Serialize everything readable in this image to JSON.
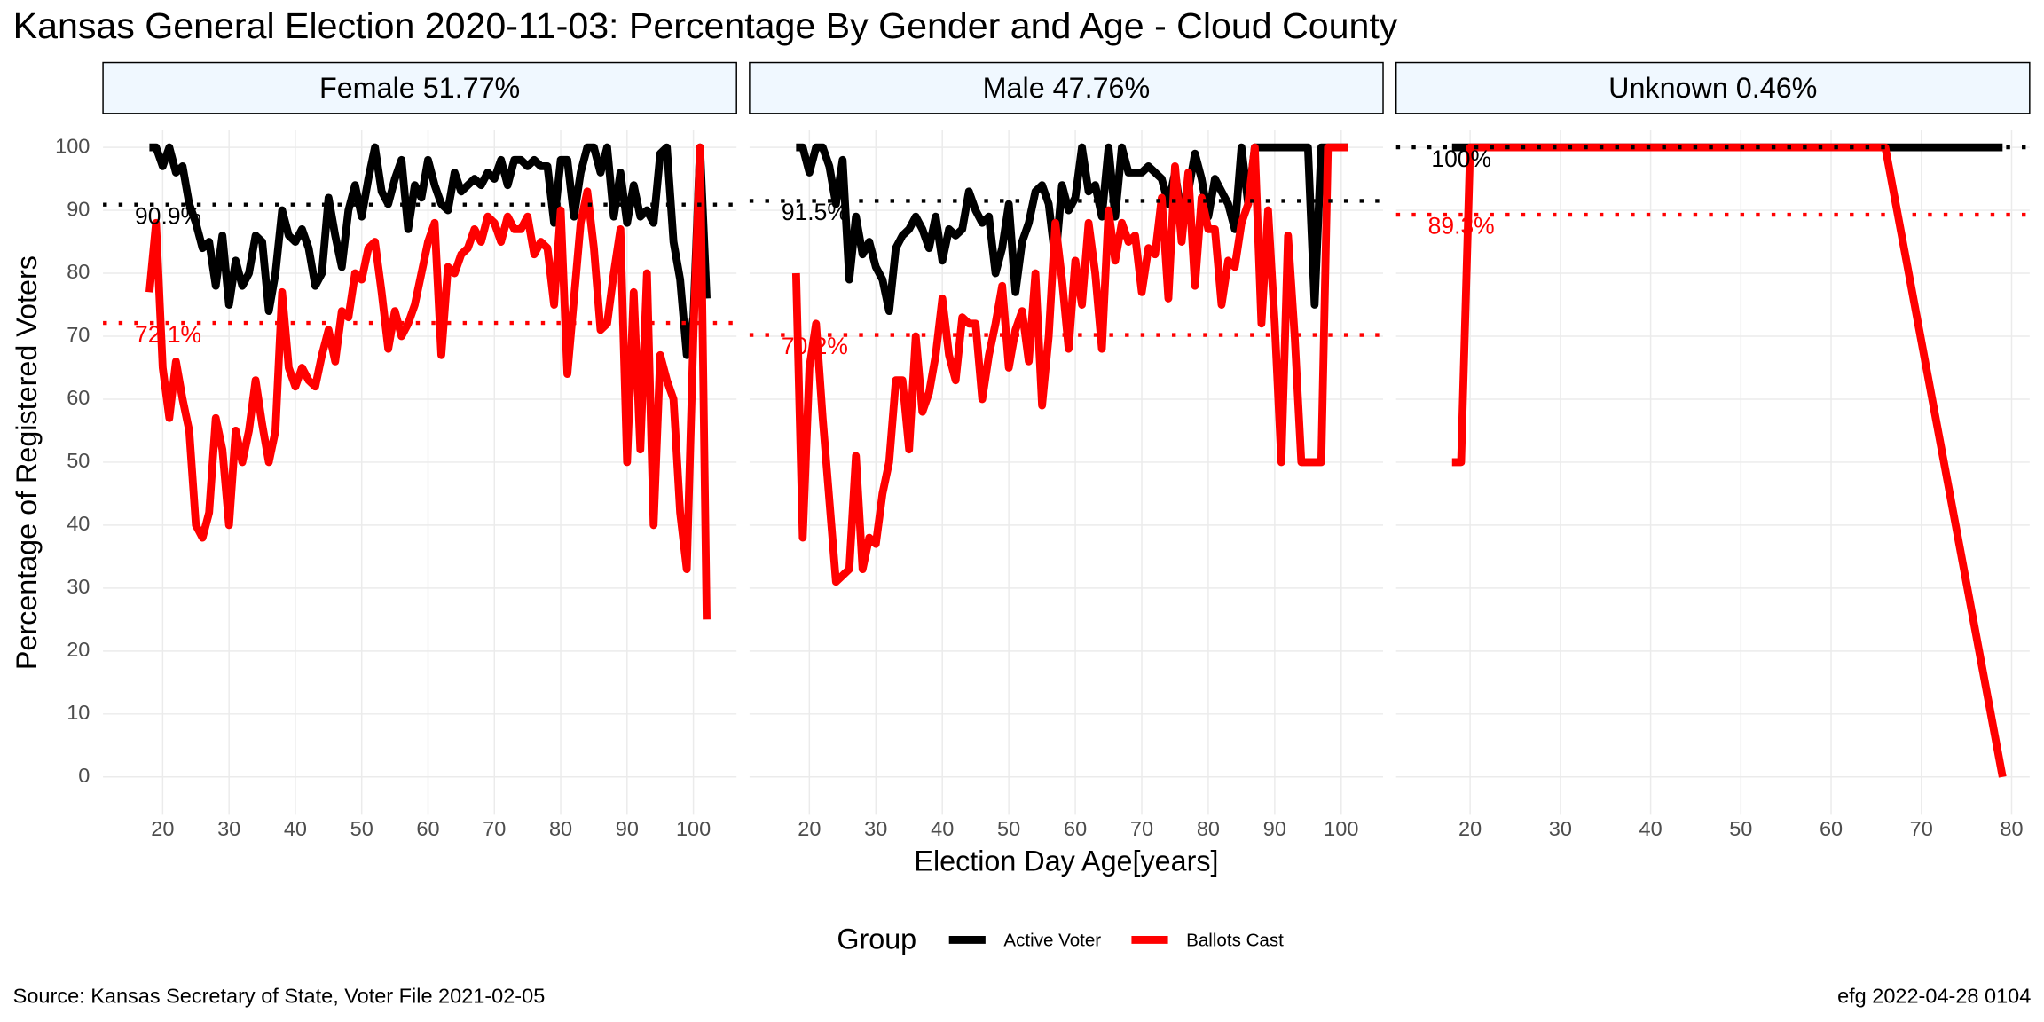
{
  "title": "Kansas General Election 2020-11-03:  Percentage By Gender and Age - Cloud County",
  "x_label": "Election Day Age[years]",
  "y_label": "Percentage of Registered Voters",
  "legend_title": "Group",
  "caption_left": "Source:  Kansas Secretary of State, Voter File  2021-02-05",
  "caption_right": "efg 2022-04-28 0104",
  "chart_data": [
    {
      "type": "line",
      "title": "Female 51.77%",
      "x": [
        18,
        19,
        20,
        21,
        22,
        23,
        24,
        25,
        26,
        27,
        28,
        29,
        30,
        31,
        32,
        33,
        34,
        35,
        36,
        37,
        38,
        39,
        40,
        41,
        42,
        43,
        44,
        45,
        46,
        47,
        48,
        49,
        50,
        51,
        52,
        53,
        54,
        55,
        56,
        57,
        58,
        59,
        60,
        61,
        62,
        63,
        64,
        65,
        66,
        67,
        68,
        69,
        70,
        71,
        72,
        73,
        74,
        75,
        76,
        77,
        78,
        79,
        80,
        81,
        82,
        83,
        84,
        85,
        86,
        87,
        88,
        89,
        90,
        91,
        92,
        93,
        94,
        95,
        96,
        97,
        98,
        99,
        100,
        101,
        102
      ],
      "series": [
        {
          "name": "Active Voter",
          "color": "#000000",
          "values": [
            100,
            100,
            97,
            100,
            96,
            97,
            91,
            88,
            84,
            85,
            78,
            86,
            75,
            82,
            78,
            80,
            86,
            85,
            74,
            80,
            90,
            86,
            85,
            87,
            84,
            78,
            80,
            92,
            86,
            81,
            90,
            94,
            89,
            95,
            100,
            93,
            91,
            95,
            98,
            87,
            94,
            92,
            98,
            94,
            91,
            90,
            96,
            93,
            94,
            95,
            94,
            96,
            95,
            98,
            94,
            98,
            98,
            97,
            98,
            97,
            97,
            88,
            98,
            98,
            89,
            96,
            100,
            100,
            96,
            100,
            89,
            96,
            88,
            94,
            89,
            90,
            88,
            99,
            100,
            85,
            79,
            67,
            73,
            100,
            76
          ]
        },
        {
          "name": "Ballots Cast",
          "color": "#ff0000",
          "values": [
            77,
            88,
            65,
            57,
            66,
            60,
            55,
            40,
            38,
            42,
            57,
            52,
            40,
            55,
            50,
            55,
            63,
            56,
            50,
            55,
            77,
            65,
            62,
            65,
            63,
            62,
            67,
            71,
            66,
            74,
            73,
            80,
            79,
            84,
            85,
            77,
            68,
            74,
            70,
            72,
            75,
            80,
            85,
            88,
            67,
            81,
            80,
            83,
            84,
            87,
            85,
            89,
            88,
            85,
            89,
            87,
            87,
            89,
            83,
            85,
            84,
            75,
            90,
            64,
            76,
            88,
            93,
            84,
            71,
            72,
            80,
            87,
            50,
            77,
            52,
            80,
            40,
            67,
            63,
            60,
            42,
            33,
            70,
            100,
            25
          ]
        }
      ],
      "reference_lines": [
        {
          "value": 90.9,
          "label": "90.9%",
          "color": "#000000"
        },
        {
          "value": 72.1,
          "label": "72.1%",
          "color": "#ff0000"
        }
      ],
      "xlim": [
        11,
        106.5
      ],
      "xticks": [
        20,
        30,
        40,
        50,
        60,
        70,
        80,
        90,
        100
      ],
      "ylim": [
        -6,
        102.7
      ],
      "yticks": [
        0,
        10,
        20,
        30,
        40,
        50,
        60,
        70,
        80,
        90,
        100
      ],
      "grid": true
    },
    {
      "type": "line",
      "title": "Male 47.76%",
      "x": [
        18,
        19,
        20,
        21,
        22,
        23,
        24,
        25,
        26,
        27,
        28,
        29,
        30,
        31,
        32,
        33,
        34,
        35,
        36,
        37,
        38,
        39,
        40,
        41,
        42,
        43,
        44,
        45,
        46,
        47,
        48,
        49,
        50,
        51,
        52,
        53,
        54,
        55,
        56,
        57,
        58,
        59,
        60,
        61,
        62,
        63,
        64,
        65,
        66,
        67,
        68,
        69,
        70,
        71,
        72,
        73,
        74,
        75,
        76,
        77,
        78,
        79,
        80,
        81,
        82,
        83,
        84,
        85,
        86,
        87,
        88,
        89,
        90,
        91,
        92,
        93,
        94,
        95,
        96,
        97,
        98,
        99,
        100,
        101
      ],
      "series": [
        {
          "name": "Active Voter",
          "color": "#000000",
          "values": [
            100,
            100,
            96,
            100,
            100,
            97,
            91,
            98,
            79,
            89,
            83,
            85,
            81,
            79,
            74,
            84,
            86,
            87,
            89,
            87,
            84,
            89,
            82,
            87,
            86,
            87,
            93,
            90,
            88,
            89,
            80,
            84,
            91,
            77,
            85,
            88,
            93,
            94,
            91,
            82,
            94,
            90,
            92,
            100,
            93,
            94,
            89,
            100,
            89,
            100,
            96,
            96,
            96,
            97,
            96,
            95,
            91,
            96,
            89,
            93,
            99,
            95,
            89,
            95,
            93,
            91,
            87,
            100,
            91,
            100,
            100,
            100,
            100,
            100,
            100,
            100,
            100,
            100,
            75,
            100,
            100,
            100,
            100,
            100
          ]
        },
        {
          "name": "Ballots Cast",
          "color": "#ff0000",
          "values": [
            80,
            38,
            65,
            72,
            57,
            44,
            31,
            32,
            33,
            51,
            33,
            38,
            37,
            45,
            50,
            63,
            63,
            52,
            70,
            58,
            61,
            67,
            76,
            67,
            63,
            73,
            72,
            72,
            60,
            67,
            72,
            78,
            65,
            71,
            74,
            66,
            80,
            59,
            70,
            88,
            79,
            68,
            82,
            75,
            88,
            80,
            68,
            90,
            82,
            88,
            85,
            86,
            77,
            84,
            83,
            92,
            76,
            97,
            85,
            96,
            78,
            92,
            87,
            87,
            75,
            82,
            81,
            88,
            91,
            100,
            72,
            90,
            72,
            50,
            86,
            70,
            50,
            50,
            50,
            50,
            100,
            100,
            100,
            100
          ]
        }
      ],
      "reference_lines": [
        {
          "value": 91.5,
          "label": "91.5%",
          "color": "#000000"
        },
        {
          "value": 70.2,
          "label": "70.2%",
          "color": "#ff0000"
        }
      ],
      "xlim": [
        11,
        106.3
      ],
      "xticks": [
        20,
        30,
        40,
        50,
        60,
        70,
        80,
        90,
        100
      ],
      "ylim": [
        -6,
        102.7
      ],
      "yticks": [
        0,
        10,
        20,
        30,
        40,
        50,
        60,
        70,
        80,
        90,
        100
      ],
      "grid": true
    },
    {
      "type": "line",
      "title": "Unknown 0.46%",
      "series": [
        {
          "name": "Active Voter",
          "color": "#000000",
          "x": [
            18,
            79
          ],
          "values": [
            100,
            100
          ]
        },
        {
          "name": "Ballots Cast",
          "color": "#ff0000",
          "x": [
            18,
            19,
            20,
            66,
            79
          ],
          "values": [
            50,
            50,
            100,
            100,
            0
          ]
        }
      ],
      "reference_lines": [
        {
          "value": 100,
          "label": "100%",
          "color": "#000000"
        },
        {
          "value": 89.3,
          "label": "89.3%",
          "color": "#ff0000"
        }
      ],
      "xlim": [
        11.8,
        82
      ],
      "xticks": [
        20,
        30,
        40,
        50,
        60,
        70,
        80
      ],
      "ylim": [
        -6,
        102.7
      ],
      "yticks": [
        0,
        10,
        20,
        30,
        40,
        50,
        60,
        70,
        80,
        90,
        100
      ],
      "grid": true
    }
  ]
}
